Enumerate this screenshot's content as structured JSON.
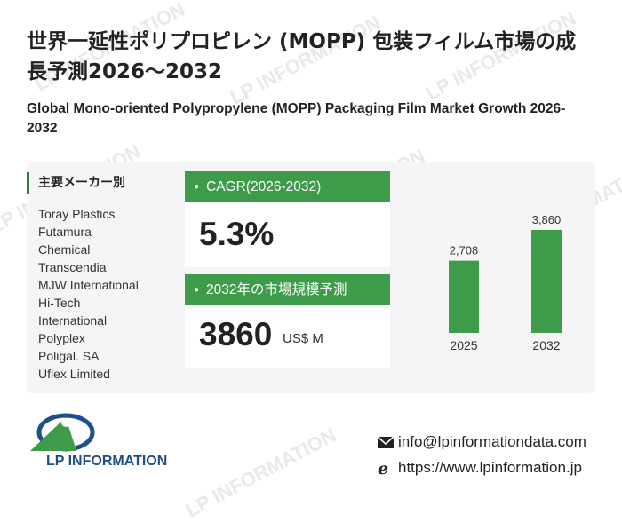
{
  "header": {
    "title_ja": "世界一延性ポリプロピレン (MOPP) 包装フィルム市場の成長予測2026～2032",
    "title_en": "Global Mono-oriented Polypropylene (MOPP) Packaging Film Market Growth 2026-2032"
  },
  "makers": {
    "heading": "主要メーカー別",
    "items": [
      "Toray Plastics",
      "Futamura",
      "Chemical",
      "Transcendia",
      "MJW International",
      "Hi-Tech",
      "International",
      "Polyplex",
      "Poligal. SA",
      "Uflex Limited"
    ]
  },
  "cagr": {
    "label": "CAGR(2026-2032)",
    "value": "5.3%"
  },
  "market_size": {
    "label": "2032年の市場規模予測",
    "value": "3860",
    "unit": "US$ M"
  },
  "chart_data": {
    "type": "bar",
    "categories": [
      "2025",
      "2032"
    ],
    "values": [
      2708,
      3860
    ],
    "data_labels": [
      "2,708",
      "3,860"
    ],
    "color": "#3e9b4a"
  },
  "brand": {
    "logo_text": "LP INFORMATION",
    "watermark": "LP INFORMATION"
  },
  "contact": {
    "email": "info@lpinformationdata.com",
    "website": "https://www.lpinformation.jp"
  },
  "colors": {
    "accent": "#3e9b4a",
    "panel": "#f4f5f4",
    "logo_blue": "#1f4e8c"
  }
}
